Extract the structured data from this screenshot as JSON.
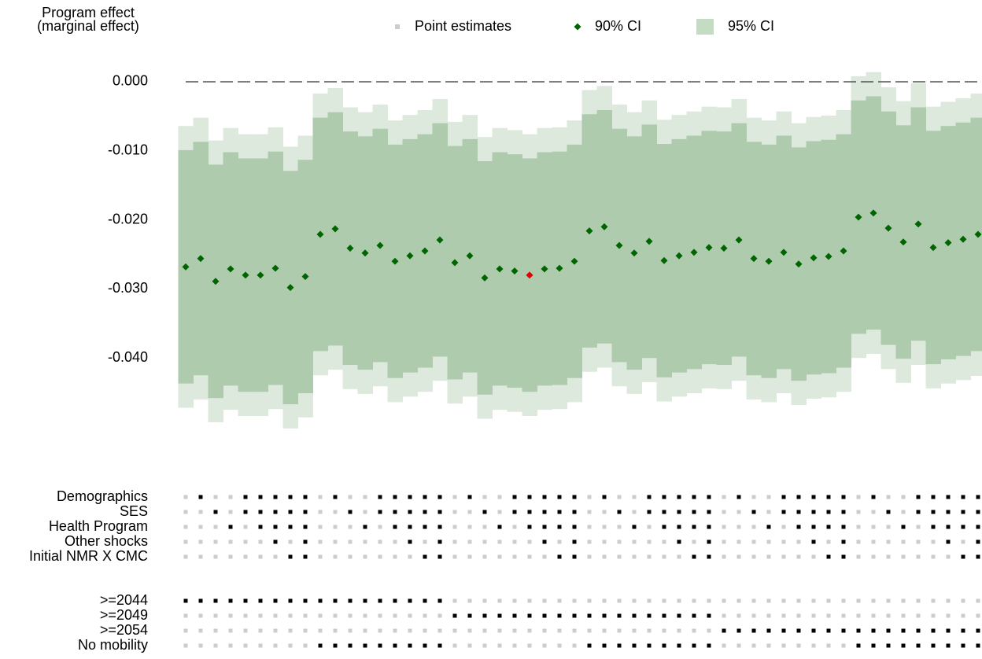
{
  "chart_data": {
    "type": "specification_curve",
    "ylabel": [
      "Program effect",
      "(marginal effect)"
    ],
    "ylim": [
      -0.052,
      0.0055
    ],
    "yticks": [
      {
        "value": 0,
        "label": "0.000"
      },
      {
        "value": -0.01,
        "label": "-0.010"
      },
      {
        "value": -0.02,
        "label": "-0.020"
      },
      {
        "value": -0.03,
        "label": "-0.030"
      },
      {
        "value": -0.04,
        "label": "-0.040"
      }
    ],
    "hline": 0,
    "series": [
      {
        "name": "Point estimates",
        "color": "#006400",
        "legend_color": "#cccccc",
        "values": [
          -0.0268,
          -0.0256,
          -0.0289,
          -0.0271,
          -0.028,
          -0.028,
          -0.027,
          -0.0298,
          -0.0282,
          -0.0221,
          -0.0213,
          -0.0241,
          -0.0248,
          -0.0237,
          -0.026,
          -0.0252,
          -0.0245,
          -0.0229,
          -0.0262,
          -0.0252,
          -0.0284,
          -0.0271,
          -0.0274,
          -0.028,
          -0.0271,
          -0.027,
          -0.026,
          -0.0216,
          -0.021,
          -0.0237,
          -0.0248,
          -0.0231,
          -0.0259,
          -0.0252,
          -0.0247,
          -0.024,
          -0.0241,
          -0.0229,
          -0.0256,
          -0.026,
          -0.0247,
          -0.0264,
          -0.0255,
          -0.0253,
          -0.0245,
          -0.0196,
          -0.019,
          -0.0212,
          -0.0232,
          -0.0206,
          -0.024,
          -0.0233,
          -0.0228,
          -0.0221
        ]
      },
      {
        "name": "90% CI",
        "color": "#aecbae",
        "legend_color": "#006400",
        "lower": [
          -0.0437,
          -0.0425,
          -0.0458,
          -0.044,
          -0.0449,
          -0.0449,
          -0.0439,
          -0.0467,
          -0.0451,
          -0.039,
          -0.0382,
          -0.041,
          -0.0417,
          -0.0406,
          -0.0429,
          -0.0421,
          -0.0414,
          -0.0398,
          -0.0431,
          -0.0421,
          -0.0453,
          -0.044,
          -0.0443,
          -0.0449,
          -0.044,
          -0.0439,
          -0.0429,
          -0.0385,
          -0.0379,
          -0.0406,
          -0.0417,
          -0.04,
          -0.0428,
          -0.0421,
          -0.0416,
          -0.0409,
          -0.041,
          -0.0398,
          -0.0425,
          -0.0429,
          -0.0416,
          -0.0433,
          -0.0424,
          -0.0422,
          -0.0414,
          -0.0365,
          -0.0359,
          -0.0381,
          -0.0401,
          -0.0375,
          -0.0409,
          -0.0402,
          -0.0397,
          -0.039
        ],
        "upper": [
          -0.0099,
          -0.0087,
          -0.012,
          -0.0102,
          -0.0111,
          -0.0111,
          -0.0101,
          -0.0129,
          -0.0113,
          -0.0052,
          -0.0044,
          -0.0072,
          -0.0079,
          -0.0068,
          -0.0091,
          -0.0083,
          -0.0076,
          -0.006,
          -0.0093,
          -0.0083,
          -0.0115,
          -0.0102,
          -0.0105,
          -0.0111,
          -0.0102,
          -0.0101,
          -0.0091,
          -0.0047,
          -0.0041,
          -0.0068,
          -0.0079,
          -0.0062,
          -0.009,
          -0.0083,
          -0.0078,
          -0.0071,
          -0.0072,
          -0.006,
          -0.0087,
          -0.0091,
          -0.0078,
          -0.0095,
          -0.0086,
          -0.0084,
          -0.0076,
          -0.0027,
          -0.0021,
          -0.0043,
          -0.0063,
          -0.0037,
          -0.0071,
          -0.0064,
          -0.0059,
          -0.0052
        ]
      },
      {
        "name": "95% CI",
        "color": "#dde9dd",
        "legend_color": "#c4dcc4",
        "lower": [
          -0.0472,
          -0.046,
          -0.0493,
          -0.0475,
          -0.0484,
          -0.0484,
          -0.0474,
          -0.0502,
          -0.0486,
          -0.0425,
          -0.0417,
          -0.0445,
          -0.0452,
          -0.0441,
          -0.0464,
          -0.0456,
          -0.0449,
          -0.0433,
          -0.0466,
          -0.0456,
          -0.0488,
          -0.0475,
          -0.0478,
          -0.0484,
          -0.0475,
          -0.0474,
          -0.0464,
          -0.042,
          -0.0414,
          -0.0441,
          -0.0452,
          -0.0435,
          -0.0463,
          -0.0456,
          -0.0451,
          -0.0444,
          -0.0445,
          -0.0433,
          -0.046,
          -0.0464,
          -0.0451,
          -0.0468,
          -0.0459,
          -0.0457,
          -0.0449,
          -0.04,
          -0.0394,
          -0.0416,
          -0.0436,
          -0.041,
          -0.0444,
          -0.0437,
          -0.0432,
          -0.0426
        ],
        "upper": [
          -0.0064,
          -0.0052,
          -0.0085,
          -0.0067,
          -0.0076,
          -0.0076,
          -0.0066,
          -0.0094,
          -0.0078,
          -0.0017,
          -0.0009,
          -0.0037,
          -0.0044,
          -0.0033,
          -0.0056,
          -0.0048,
          -0.0041,
          -0.0025,
          -0.0058,
          -0.0048,
          -0.008,
          -0.0067,
          -0.007,
          -0.0076,
          -0.0067,
          -0.0066,
          -0.0056,
          -0.0012,
          -0.0006,
          -0.0033,
          -0.0044,
          -0.0027,
          -0.0055,
          -0.0048,
          -0.0043,
          -0.0036,
          -0.0037,
          -0.0025,
          -0.0052,
          -0.0056,
          -0.0043,
          -0.006,
          -0.0051,
          -0.0049,
          -0.0041,
          0.0008,
          0.0014,
          -0.0008,
          -0.0028,
          -0.0002,
          -0.0036,
          -0.0029,
          -0.0024,
          -0.0017
        ]
      }
    ],
    "highlight": {
      "index": 23,
      "color": "#e00000"
    },
    "indicator_colors": {
      "on": "#000000",
      "off": "#cccccc"
    },
    "indicator_groups": [
      [
        {
          "label": "Demographics",
          "values": [
            0,
            1,
            0,
            0,
            1,
            1,
            1,
            1,
            1,
            0,
            1,
            0,
            0,
            1,
            1,
            1,
            1,
            1,
            0,
            1,
            0,
            0,
            1,
            1,
            1,
            1,
            1,
            0,
            1,
            0,
            0,
            1,
            1,
            1,
            1,
            1,
            0,
            1,
            0,
            0,
            1,
            1,
            1,
            1,
            1,
            0,
            1,
            0,
            0,
            1,
            1,
            1,
            1,
            1
          ]
        },
        {
          "label": "SES",
          "values": [
            0,
            0,
            1,
            0,
            1,
            1,
            1,
            1,
            1,
            0,
            0,
            1,
            0,
            1,
            1,
            1,
            1,
            1,
            0,
            0,
            1,
            0,
            1,
            1,
            1,
            1,
            1,
            0,
            0,
            1,
            0,
            1,
            1,
            1,
            1,
            1,
            0,
            0,
            1,
            0,
            1,
            1,
            1,
            1,
            1,
            0,
            0,
            1,
            0,
            1,
            1,
            1,
            1,
            1
          ]
        },
        {
          "label": "Health Program",
          "values": [
            0,
            0,
            0,
            1,
            0,
            1,
            1,
            1,
            1,
            0,
            0,
            0,
            1,
            0,
            1,
            1,
            1,
            1,
            0,
            0,
            0,
            1,
            0,
            1,
            1,
            1,
            1,
            0,
            0,
            0,
            1,
            0,
            1,
            1,
            1,
            1,
            0,
            0,
            0,
            1,
            0,
            1,
            1,
            1,
            1,
            0,
            0,
            0,
            1,
            0,
            1,
            1,
            1,
            1
          ]
        },
        {
          "label": "Other shocks",
          "values": [
            0,
            0,
            0,
            0,
            0,
            0,
            1,
            0,
            1,
            0,
            0,
            0,
            0,
            0,
            0,
            1,
            0,
            1,
            0,
            0,
            0,
            0,
            0,
            0,
            1,
            0,
            1,
            0,
            0,
            0,
            0,
            0,
            0,
            1,
            0,
            1,
            0,
            0,
            0,
            0,
            0,
            0,
            1,
            0,
            1,
            0,
            0,
            0,
            0,
            0,
            0,
            1,
            0,
            1
          ]
        },
        {
          "label": "Initial NMR X CMC",
          "values": [
            0,
            0,
            0,
            0,
            0,
            0,
            0,
            1,
            1,
            0,
            0,
            0,
            0,
            0,
            0,
            0,
            1,
            1,
            0,
            0,
            0,
            0,
            0,
            0,
            0,
            1,
            1,
            0,
            0,
            0,
            0,
            0,
            0,
            0,
            1,
            1,
            0,
            0,
            0,
            0,
            0,
            0,
            0,
            1,
            1,
            0,
            0,
            0,
            0,
            0,
            0,
            0,
            1,
            1
          ]
        }
      ],
      [
        {
          "label": ">=2044",
          "values": [
            1,
            1,
            1,
            1,
            1,
            1,
            1,
            1,
            1,
            1,
            1,
            1,
            1,
            1,
            1,
            1,
            1,
            1,
            0,
            0,
            0,
            0,
            0,
            0,
            0,
            0,
            0,
            0,
            0,
            0,
            0,
            0,
            0,
            0,
            0,
            0,
            0,
            0,
            0,
            0,
            0,
            0,
            0,
            0,
            0,
            0,
            0,
            0,
            0,
            0,
            0,
            0,
            0,
            0
          ]
        },
        {
          "label": ">=2049",
          "values": [
            0,
            0,
            0,
            0,
            0,
            0,
            0,
            0,
            0,
            0,
            0,
            0,
            0,
            0,
            0,
            0,
            0,
            0,
            1,
            1,
            1,
            1,
            1,
            1,
            1,
            1,
            1,
            1,
            1,
            1,
            1,
            1,
            1,
            1,
            1,
            1,
            0,
            0,
            0,
            0,
            0,
            0,
            0,
            0,
            0,
            0,
            0,
            0,
            0,
            0,
            0,
            0,
            0,
            0
          ]
        },
        {
          "label": ">=2054",
          "values": [
            0,
            0,
            0,
            0,
            0,
            0,
            0,
            0,
            0,
            0,
            0,
            0,
            0,
            0,
            0,
            0,
            0,
            0,
            0,
            0,
            0,
            0,
            0,
            0,
            0,
            0,
            0,
            0,
            0,
            0,
            0,
            0,
            0,
            0,
            0,
            0,
            1,
            1,
            1,
            1,
            1,
            1,
            1,
            1,
            1,
            1,
            1,
            1,
            1,
            1,
            1,
            1,
            1,
            1
          ]
        },
        {
          "label": "No mobility",
          "values": [
            0,
            0,
            0,
            0,
            0,
            0,
            0,
            0,
            0,
            1,
            1,
            1,
            1,
            1,
            1,
            1,
            1,
            1,
            0,
            0,
            0,
            0,
            0,
            0,
            0,
            0,
            0,
            1,
            1,
            1,
            1,
            1,
            1,
            1,
            1,
            1,
            0,
            0,
            0,
            0,
            0,
            0,
            0,
            0,
            0,
            1,
            1,
            1,
            1,
            1,
            1,
            1,
            1,
            1
          ]
        }
      ]
    ]
  }
}
